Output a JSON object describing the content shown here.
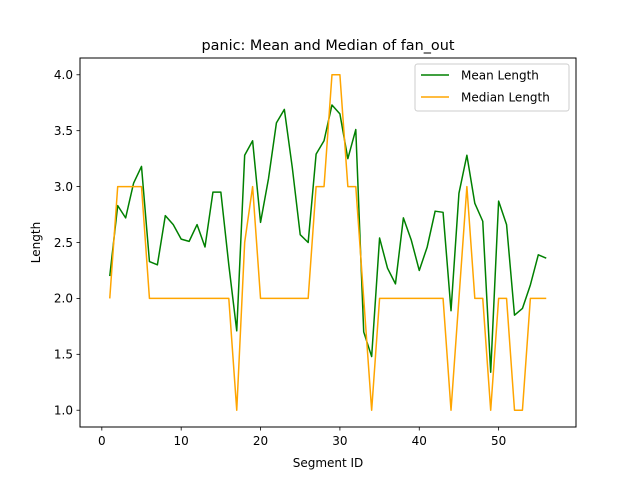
{
  "chart_data": {
    "type": "line",
    "title": "panic: Mean and Median of fan_out",
    "xlabel": "Segment ID",
    "ylabel": "Length",
    "xlim": [
      -2.75,
      59.75
    ],
    "ylim": [
      0.85,
      4.15
    ],
    "xticks": [
      0,
      10,
      20,
      30,
      40,
      50
    ],
    "yticks": [
      1.0,
      1.5,
      2.0,
      2.5,
      3.0,
      3.5,
      4.0
    ],
    "ytick_labels": [
      "1.0",
      "1.5",
      "2.0",
      "2.5",
      "3.0",
      "3.5",
      "4.0"
    ],
    "grid": false,
    "legend_position": "top-right",
    "x": [
      1,
      2,
      3,
      4,
      5,
      6,
      7,
      8,
      9,
      10,
      11,
      12,
      13,
      14,
      15,
      16,
      17,
      18,
      19,
      20,
      21,
      22,
      23,
      24,
      25,
      26,
      27,
      28,
      29,
      30,
      31,
      32,
      33,
      34,
      35,
      36,
      37,
      38,
      39,
      40,
      41,
      42,
      43,
      44,
      45,
      46,
      47,
      48,
      49,
      50,
      51,
      52,
      53,
      54,
      55,
      56
    ],
    "series": [
      {
        "name": "Mean Length",
        "color": "#008000",
        "values": [
          2.2,
          2.83,
          2.72,
          3.03,
          3.18,
          2.33,
          2.3,
          2.74,
          2.66,
          2.53,
          2.51,
          2.66,
          2.46,
          2.95,
          2.95,
          2.3,
          1.71,
          3.28,
          3.41,
          2.68,
          3.07,
          3.57,
          3.69,
          3.17,
          2.57,
          2.5,
          3.29,
          3.41,
          3.73,
          3.65,
          3.25,
          3.51,
          1.7,
          1.48,
          2.54,
          2.27,
          2.13,
          2.72,
          2.52,
          2.25,
          2.46,
          2.78,
          2.77,
          1.89,
          2.94,
          3.28,
          2.85,
          2.69,
          1.34,
          2.87,
          2.66,
          1.85,
          1.91,
          2.12,
          2.39,
          2.36
        ]
      },
      {
        "name": "Median Length",
        "color": "#FFA500",
        "values": [
          2.0,
          3.0,
          3.0,
          3.0,
          3.0,
          2.0,
          2.0,
          2.0,
          2.0,
          2.0,
          2.0,
          2.0,
          2.0,
          2.0,
          2.0,
          2.0,
          1.0,
          2.5,
          3.0,
          2.0,
          2.0,
          2.0,
          2.0,
          2.0,
          2.0,
          2.0,
          3.0,
          3.0,
          4.0,
          4.0,
          3.0,
          3.0,
          2.0,
          1.0,
          2.0,
          2.0,
          2.0,
          2.0,
          2.0,
          2.0,
          2.0,
          2.0,
          2.0,
          1.0,
          2.0,
          3.0,
          2.0,
          2.0,
          1.0,
          2.0,
          2.0,
          1.0,
          1.0,
          2.0,
          2.0,
          2.0
        ]
      }
    ]
  }
}
